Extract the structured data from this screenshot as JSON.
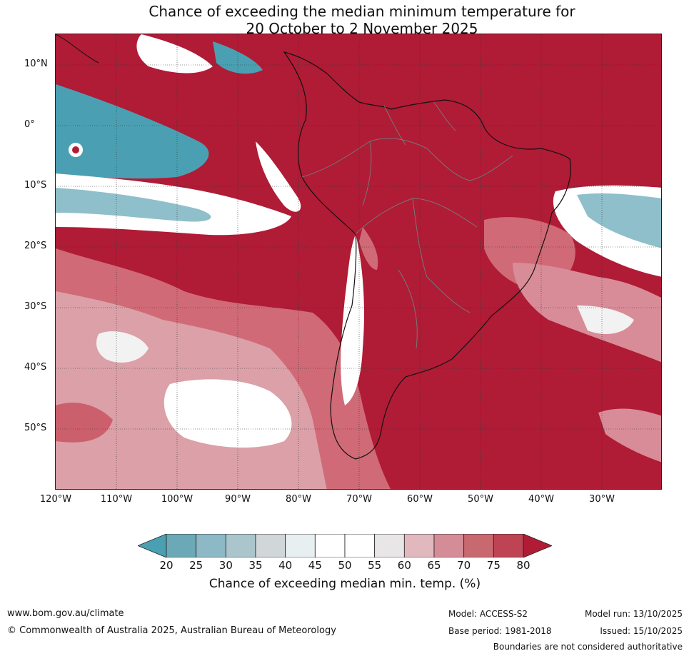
{
  "title": {
    "line1": "Chance of exceeding the median minimum temperature for",
    "line2": "20 October to 2 November 2025"
  },
  "map": {
    "lat_ticks": [
      "10°N",
      "0°",
      "10°S",
      "20°S",
      "30°S",
      "40°S",
      "50°S"
    ],
    "lon_ticks": [
      "120°W",
      "110°W",
      "100°W",
      "90°W",
      "80°W",
      "70°W",
      "60°W",
      "50°W",
      "40°W",
      "30°W"
    ],
    "colors": {
      "dominant": "#b01b36",
      "ocean_fill": "#b01b36",
      "pale_red": "#d88c97",
      "white_band": "#ffffff",
      "blue": "#4aa0b2",
      "light_blue": "#8fbfca"
    }
  },
  "colorbar": {
    "ticks": [
      "20",
      "25",
      "30",
      "35",
      "40",
      "45",
      "50",
      "55",
      "60",
      "65",
      "70",
      "75",
      "80"
    ],
    "colors": [
      "#4aa0b2",
      "#6ba9b7",
      "#8db8c5",
      "#aac6cc",
      "#d1d6d8",
      "#e8eff1",
      "#ffffff",
      "#ffffff",
      "#e9e6e7",
      "#e0b8be",
      "#d48d97",
      "#c8686f",
      "#be4453",
      "#b01b36"
    ],
    "label": "Chance of exceeding median min. temp. (%)"
  },
  "footer": {
    "website": "www.bom.gov.au/climate",
    "copyright": "© Commonwealth of Australia 2025, Australian Bureau of Meteorology",
    "model": "Model: ACCESS-S2",
    "base_period": "Base period: 1981-2018",
    "model_run": "Model run: 13/10/2025",
    "issued": "Issued: 15/10/2025",
    "disclaimer": "Boundaries are not considered authoritative"
  }
}
